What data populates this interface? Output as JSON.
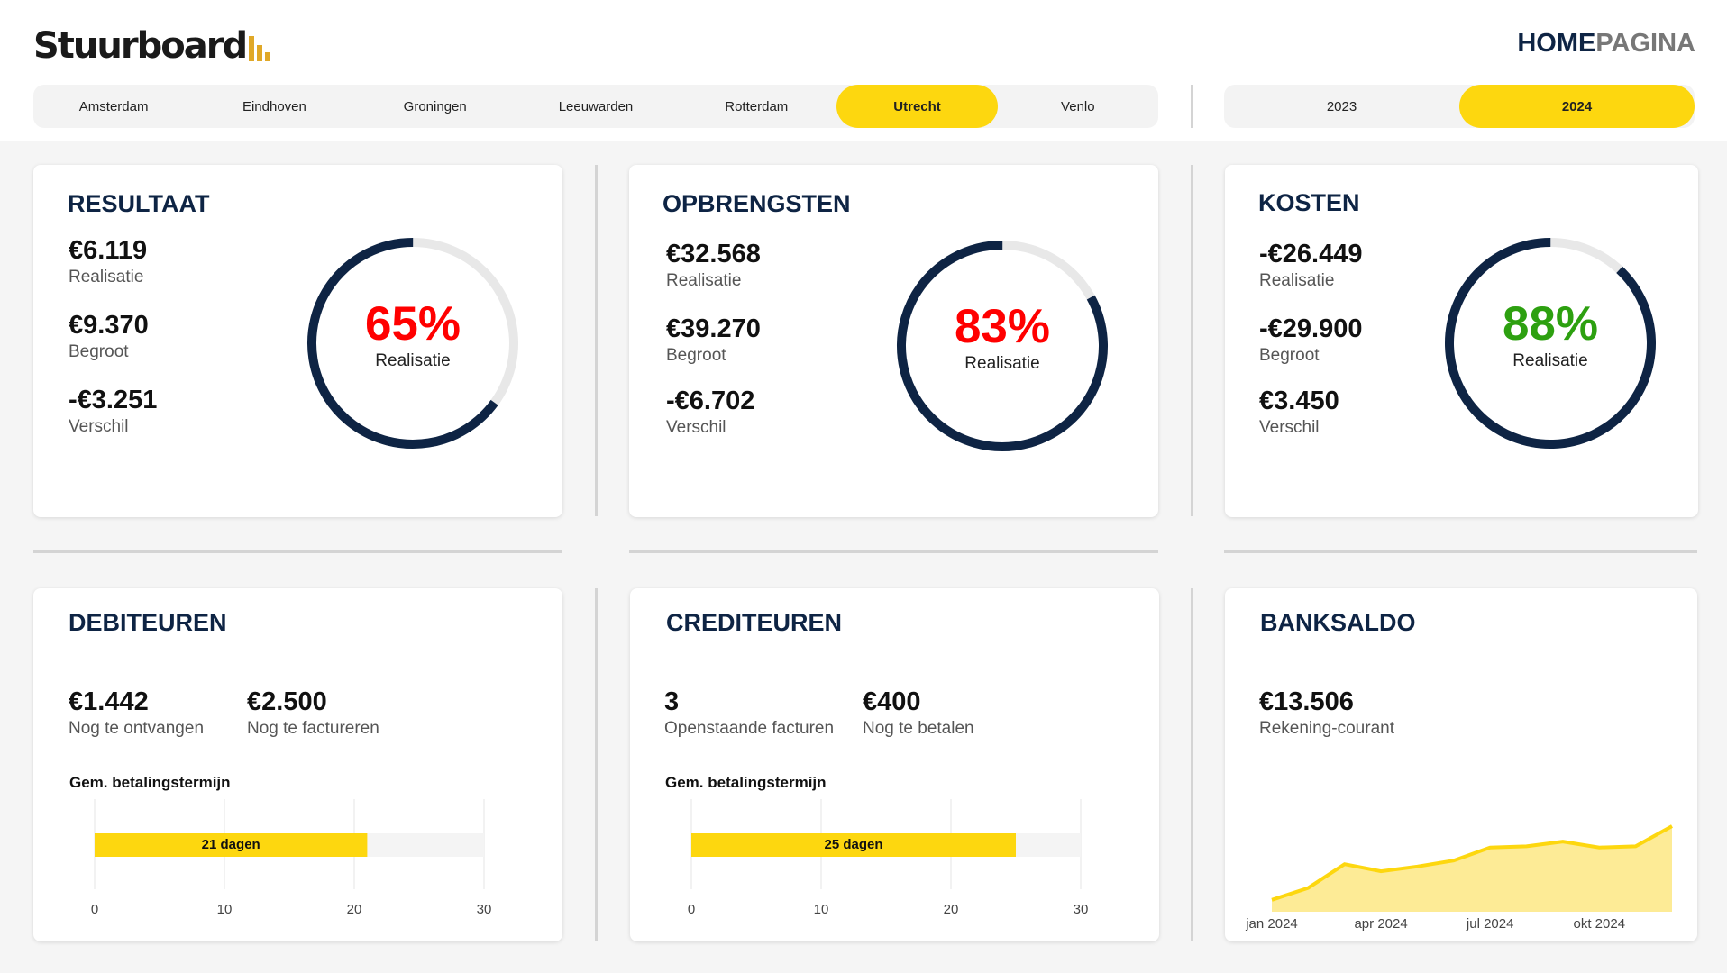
{
  "logo": {
    "text": "Stuurboard"
  },
  "page_label": {
    "part1": "HOME",
    "part2": "PAGINA"
  },
  "cities": [
    "Amsterdam",
    "Eindhoven",
    "Groningen",
    "Leeuwarden",
    "Rotterdam",
    "Utrecht",
    "Venlo"
  ],
  "selected_city": "Utrecht",
  "years": [
    "2023",
    "2024"
  ],
  "selected_year": "2024",
  "colors": {
    "accent": "#fdd70f",
    "navy": "#0e2444",
    "red": "#ff0000",
    "green": "#2da010",
    "track": "#e8e8e8"
  },
  "resultaat": {
    "title": "RESULTAAT",
    "realisatie_value": "€6.119",
    "realisatie_label": "Realisatie",
    "begroot_value": "€9.370",
    "begroot_label": "Begroot",
    "verschil_value": "-€3.251",
    "verschil_label": "Verschil",
    "gauge_pct": "65%",
    "gauge_fraction": 0.65,
    "gauge_label": "Realisatie",
    "gauge_color": "#ff0000"
  },
  "opbrengsten": {
    "title": "OPBRENGSTEN",
    "realisatie_value": "€32.568",
    "realisatie_label": "Realisatie",
    "begroot_value": "€39.270",
    "begroot_label": "Begroot",
    "verschil_value": "-€6.702",
    "verschil_label": "Verschil",
    "gauge_pct": "83%",
    "gauge_fraction": 0.83,
    "gauge_label": "Realisatie",
    "gauge_color": "#ff0000"
  },
  "kosten": {
    "title": "KOSTEN",
    "realisatie_value": "-€26.449",
    "realisatie_label": "Realisatie",
    "begroot_value": "-€29.900",
    "begroot_label": "Begroot",
    "verschil_value": "€3.450",
    "verschil_label": "Verschil",
    "gauge_pct": "88%",
    "gauge_fraction": 0.88,
    "gauge_label": "Realisatie",
    "gauge_color": "#2da010"
  },
  "debiteuren": {
    "title": "DEBITEUREN",
    "value1": "€1.442",
    "label1": "Nog te ontvangen",
    "value2": "€2.500",
    "label2": "Nog te factureren",
    "chart_title": "Gem. betalingstermijn",
    "bar_label": "21 dagen"
  },
  "crediteuren": {
    "title": "CREDITEUREN",
    "value1": "3",
    "label1": "Openstaande facturen",
    "value2": "€400",
    "label2": "Nog te betalen",
    "chart_title": "Gem. betalingstermijn",
    "bar_label": "25 dagen"
  },
  "banksaldo": {
    "title": "BANKSALDO",
    "value": "€13.506",
    "label": "Rekening-courant"
  },
  "chart_data": [
    {
      "type": "bar",
      "categories": [
        "Gem. betalingstermijn"
      ],
      "values": [
        21
      ],
      "xlim": [
        0,
        30
      ],
      "xticks": [
        "0",
        "10",
        "20",
        "30"
      ],
      "data_labels": [
        "21 dagen"
      ],
      "title": "Gem. betalingstermijn",
      "grid": true
    },
    {
      "type": "bar",
      "categories": [
        "Gem. betalingstermijn"
      ],
      "values": [
        25
      ],
      "xlim": [
        0,
        30
      ],
      "xticks": [
        "0",
        "10",
        "20",
        "30"
      ],
      "data_labels": [
        "25 dagen"
      ],
      "title": "Gem. betalingstermijn",
      "grid": true
    },
    {
      "type": "area",
      "x": [
        "jan 2024",
        "feb 2024",
        "mrt 2024",
        "apr 2024",
        "mei 2024",
        "jun 2024",
        "jul 2024",
        "aug 2024",
        "sep 2024",
        "okt 2024",
        "nov 2024",
        "dec 2024"
      ],
      "values": [
        1000,
        2000,
        4000,
        3400,
        3800,
        4300,
        5400,
        5500,
        5900,
        5400,
        5500,
        7200
      ],
      "xtick_labels": [
        "jan 2024",
        "apr 2024",
        "jul 2024",
        "okt 2024"
      ],
      "line_color": "#fdd70f",
      "fill_color": "#fdeb96",
      "grid": false
    }
  ]
}
